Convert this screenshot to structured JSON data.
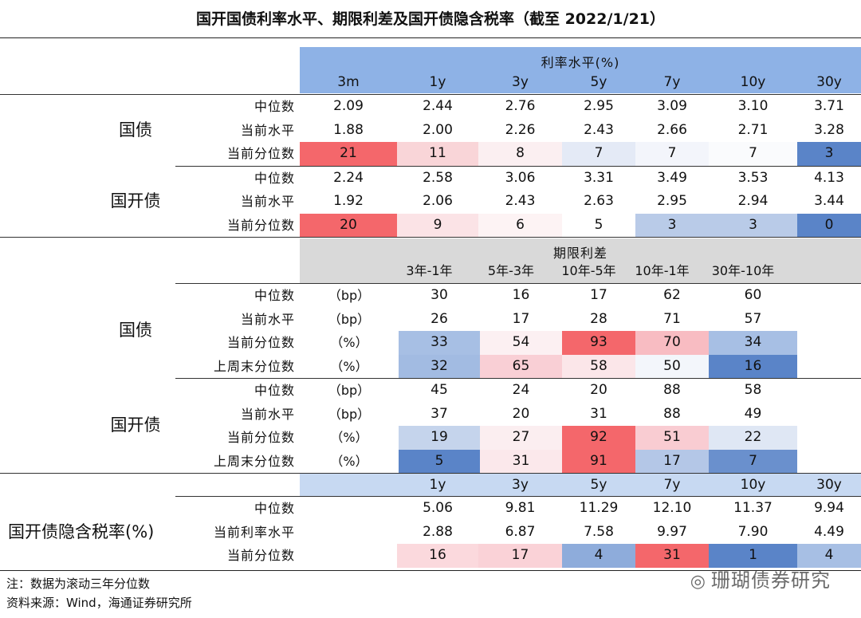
{
  "title": "国开国债利率水平、期限利差及国开债隐含税率（截至 2022/1/21）",
  "sections": {
    "rates": {
      "header": "利率水平(%)",
      "tenors": [
        "3m",
        "1y",
        "3y",
        "5y",
        "7y",
        "10y",
        "30y"
      ],
      "groups": [
        {
          "name": "国债",
          "rows": [
            {
              "label": "中位数",
              "values": [
                "2.09",
                "2.44",
                "2.76",
                "2.95",
                "3.09",
                "3.10",
                "3.71"
              ]
            },
            {
              "label": "当前水平",
              "values": [
                "1.88",
                "2.00",
                "2.26",
                "2.43",
                "2.66",
                "2.71",
                "3.28"
              ]
            },
            {
              "label": "当前分位数",
              "values": [
                "21",
                "11",
                "8",
                "7",
                "7",
                "7",
                "3"
              ],
              "colors": [
                "#f4676b",
                "#f9d5d8",
                "#fbeff1",
                "#e4eaf6",
                "#f3f5fb",
                "#fafbfd",
                "#5a84c8"
              ]
            }
          ]
        },
        {
          "name": "国开债",
          "rows": [
            {
              "label": "中位数",
              "values": [
                "2.24",
                "2.58",
                "3.06",
                "3.31",
                "3.49",
                "3.53",
                "4.13"
              ]
            },
            {
              "label": "当前水平",
              "values": [
                "1.92",
                "2.06",
                "2.43",
                "2.63",
                "2.95",
                "2.94",
                "3.44"
              ]
            },
            {
              "label": "当前分位数",
              "values": [
                "20",
                "9",
                "6",
                "5",
                "3",
                "3",
                "0"
              ],
              "colors": [
                "#f4676b",
                "#fbe3e6",
                "#fdf3f4",
                "#ffffff",
                "#b9cbe8",
                "#b9cbe8",
                "#5a84c8"
              ]
            }
          ]
        }
      ]
    },
    "spreads": {
      "header": "期限利差",
      "tenors": [
        "3年-1年",
        "5年-3年",
        "10年-5年",
        "10年-1年",
        "30年-10年"
      ],
      "groups": [
        {
          "name": "国债",
          "rows": [
            {
              "label": "中位数",
              "unit": "（bp）",
              "values": [
                "30",
                "16",
                "17",
                "62",
                "60"
              ]
            },
            {
              "label": "当前水平",
              "unit": "（bp）",
              "values": [
                "26",
                "17",
                "28",
                "71",
                "57"
              ]
            },
            {
              "label": "当前分位数",
              "unit": "（%）",
              "values": [
                "33",
                "54",
                "93",
                "70",
                "34"
              ],
              "colors": [
                "#a7bfe4",
                "#fcf0f2",
                "#f4676b",
                "#f8bcc2",
                "#a7bfe4"
              ]
            },
            {
              "label": "上周末分位数",
              "unit": "（%）",
              "values": [
                "32",
                "65",
                "58",
                "50",
                "16"
              ],
              "colors": [
                "#a2bbe2",
                "#f9cfd5",
                "#fbe6e9",
                "#f3f6fb",
                "#5a84c8"
              ]
            }
          ]
        },
        {
          "name": "国开债",
          "rows": [
            {
              "label": "中位数",
              "unit": "（bp）",
              "values": [
                "45",
                "24",
                "20",
                "88",
                "58"
              ]
            },
            {
              "label": "当前水平",
              "unit": "（bp）",
              "values": [
                "37",
                "20",
                "31",
                "88",
                "49"
              ]
            },
            {
              "label": "当前分位数",
              "unit": "（%）",
              "values": [
                "19",
                "27",
                "92",
                "51",
                "22"
              ],
              "colors": [
                "#c5d4ec",
                "#fbeef0",
                "#f4676b",
                "#f9ccd2",
                "#dfe7f4"
              ]
            },
            {
              "label": "上周末分位数",
              "unit": "（%）",
              "values": [
                "5",
                "31",
                "91",
                "17",
                "7"
              ],
              "colors": [
                "#5a84c8",
                "#fbe8eb",
                "#f4676b",
                "#b4c7e7",
                "#6a90cd"
              ]
            }
          ]
        }
      ]
    },
    "implied_tax": {
      "tenors": [
        "1y",
        "3y",
        "5y",
        "7y",
        "10y",
        "30y"
      ],
      "name": "国开债隐含税率(%)",
      "rows": [
        {
          "label": "中位数",
          "values": [
            "5.06",
            "9.81",
            "11.29",
            "12.10",
            "11.37",
            "9.94"
          ]
        },
        {
          "label": "当前利率水平",
          "values": [
            "2.88",
            "6.87",
            "7.58",
            "9.97",
            "7.90",
            "4.49"
          ]
        },
        {
          "label": "当前分位数",
          "values": [
            "16",
            "17",
            "4",
            "31",
            "1",
            "4"
          ],
          "colors": [
            "#fbd9dd",
            "#fad2d7",
            "#8eacdb",
            "#f4676b",
            "#5a84c8",
            "#a7bfe4"
          ]
        }
      ]
    }
  },
  "colors": {
    "rate_header_bg": "#8eb2e6",
    "spread_header_bg": "#d9d9d9",
    "tax_header_bg": "#c7d9f2"
  },
  "footnotes": {
    "note": "注：数据为滚动三年分位数",
    "source": "资料来源：Wind，海通证券研究所"
  },
  "watermark": "珊瑚债券研究"
}
